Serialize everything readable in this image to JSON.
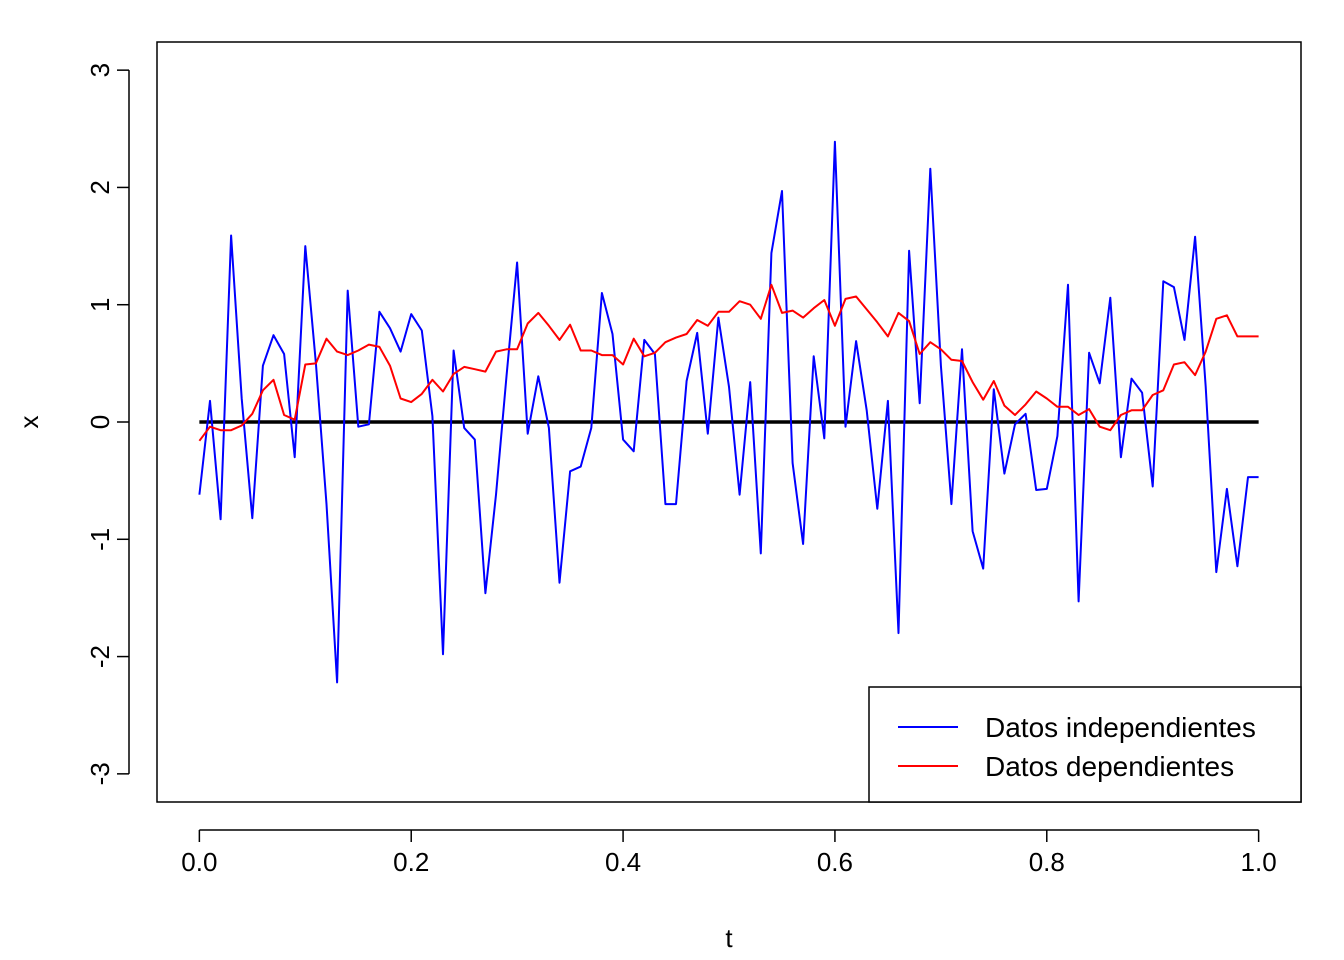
{
  "chart_data": {
    "type": "line",
    "title": "",
    "xlabel": "t",
    "ylabel": "x",
    "xlim": [
      -0.04,
      1.04
    ],
    "ylim": [
      -3.24,
      3.24
    ],
    "xticks": [
      "0.0",
      "0.2",
      "0.4",
      "0.6",
      "0.8",
      "1.0"
    ],
    "yticks": [
      "-3",
      "-2",
      "-1",
      "0",
      "1",
      "2",
      "3"
    ],
    "xtick_values": [
      0,
      0.2,
      0.4,
      0.6,
      0.8,
      1.0
    ],
    "ytick_values": [
      -3,
      -2,
      -1,
      0,
      1,
      2,
      3
    ],
    "grid": false,
    "legend_position": "bottom-right",
    "reference_line": {
      "y": 0,
      "x_from": 0,
      "x_to": 1,
      "color": "#000000"
    },
    "x": [
      0,
      0.01,
      0.02,
      0.03,
      0.04,
      0.05,
      0.06,
      0.07,
      0.08,
      0.09,
      0.1,
      0.11,
      0.12,
      0.13,
      0.14,
      0.15,
      0.16,
      0.17,
      0.18,
      0.19,
      0.2,
      0.21,
      0.22,
      0.23,
      0.24,
      0.25,
      0.26,
      0.27,
      0.28,
      0.29,
      0.3,
      0.31,
      0.32,
      0.33,
      0.34,
      0.35,
      0.36,
      0.37,
      0.38,
      0.39,
      0.4,
      0.41,
      0.42,
      0.43,
      0.44,
      0.45,
      0.46,
      0.47,
      0.48,
      0.49,
      0.5,
      0.51,
      0.52,
      0.53,
      0.54,
      0.55,
      0.56,
      0.57,
      0.58,
      0.59,
      0.6,
      0.61,
      0.62,
      0.63,
      0.64,
      0.65,
      0.66,
      0.67,
      0.68,
      0.69,
      0.7,
      0.71,
      0.72,
      0.73,
      0.74,
      0.75,
      0.76,
      0.77,
      0.78,
      0.79,
      0.8,
      0.81,
      0.82,
      0.83,
      0.84,
      0.85,
      0.86,
      0.87,
      0.88,
      0.89,
      0.9,
      0.91,
      0.92,
      0.93,
      0.94,
      0.95,
      0.96,
      0.97,
      0.98,
      0.99,
      1.0
    ],
    "series": [
      {
        "name": "Datos independientes",
        "color": "#0000ff",
        "values": [
          -0.62,
          0.18,
          -0.83,
          1.59,
          0.2,
          -0.82,
          0.48,
          0.74,
          0.58,
          -0.3,
          1.5,
          0.5,
          -0.7,
          -2.22,
          1.12,
          -0.04,
          -0.02,
          0.94,
          0.8,
          0.6,
          0.92,
          0.78,
          0.05,
          -1.98,
          0.61,
          -0.05,
          -0.15,
          -1.46,
          -0.62,
          0.4,
          1.36,
          -0.1,
          0.39,
          -0.05,
          -1.37,
          -0.42,
          -0.38,
          -0.05,
          1.1,
          0.75,
          -0.15,
          -0.25,
          0.7,
          0.58,
          -0.7,
          -0.7,
          0.35,
          0.76,
          -0.1,
          0.89,
          0.3,
          -0.62,
          0.34,
          -1.12,
          1.44,
          1.97,
          -0.35,
          -1.04,
          0.56,
          -0.14,
          2.39,
          -0.04,
          0.69,
          0.1,
          -0.74,
          0.18,
          -1.8,
          1.46,
          0.16,
          2.16,
          0.48,
          -0.7,
          0.62,
          -0.93,
          -1.25,
          0.28,
          -0.44,
          -0.02,
          0.07,
          -0.58,
          -0.57,
          -0.12,
          1.17,
          -1.53,
          0.59,
          0.33,
          1.06,
          -0.3,
          0.37,
          0.25,
          -0.55,
          1.2,
          1.15,
          0.7,
          1.58,
          0.3,
          -1.28,
          -0.57,
          -1.23,
          -0.47,
          -0.47
        ]
      },
      {
        "name": "Datos dependientes",
        "color": "#ff0000",
        "values": [
          -0.16,
          -0.04,
          -0.07,
          -0.07,
          -0.03,
          0.07,
          0.27,
          0.36,
          0.06,
          0.02,
          0.49,
          0.5,
          0.71,
          0.6,
          0.57,
          0.61,
          0.66,
          0.64,
          0.48,
          0.2,
          0.17,
          0.24,
          0.36,
          0.26,
          0.41,
          0.47,
          0.45,
          0.43,
          0.6,
          0.62,
          0.62,
          0.84,
          0.93,
          0.82,
          0.7,
          0.83,
          0.61,
          0.61,
          0.57,
          0.57,
          0.49,
          0.71,
          0.56,
          0.59,
          0.68,
          0.72,
          0.75,
          0.87,
          0.82,
          0.94,
          0.94,
          1.03,
          1.0,
          0.88,
          1.17,
          0.93,
          0.95,
          0.89,
          0.97,
          1.04,
          0.82,
          1.05,
          1.07,
          0.96,
          0.85,
          0.73,
          0.93,
          0.86,
          0.58,
          0.68,
          0.62,
          0.53,
          0.52,
          0.34,
          0.19,
          0.35,
          0.14,
          0.06,
          0.15,
          0.26,
          0.2,
          0.13,
          0.13,
          0.06,
          0.11,
          -0.04,
          -0.07,
          0.06,
          0.1,
          0.1,
          0.23,
          0.27,
          0.49,
          0.51,
          0.4,
          0.6,
          0.88,
          0.91,
          0.73,
          0.73,
          0.73
        ]
      }
    ]
  }
}
